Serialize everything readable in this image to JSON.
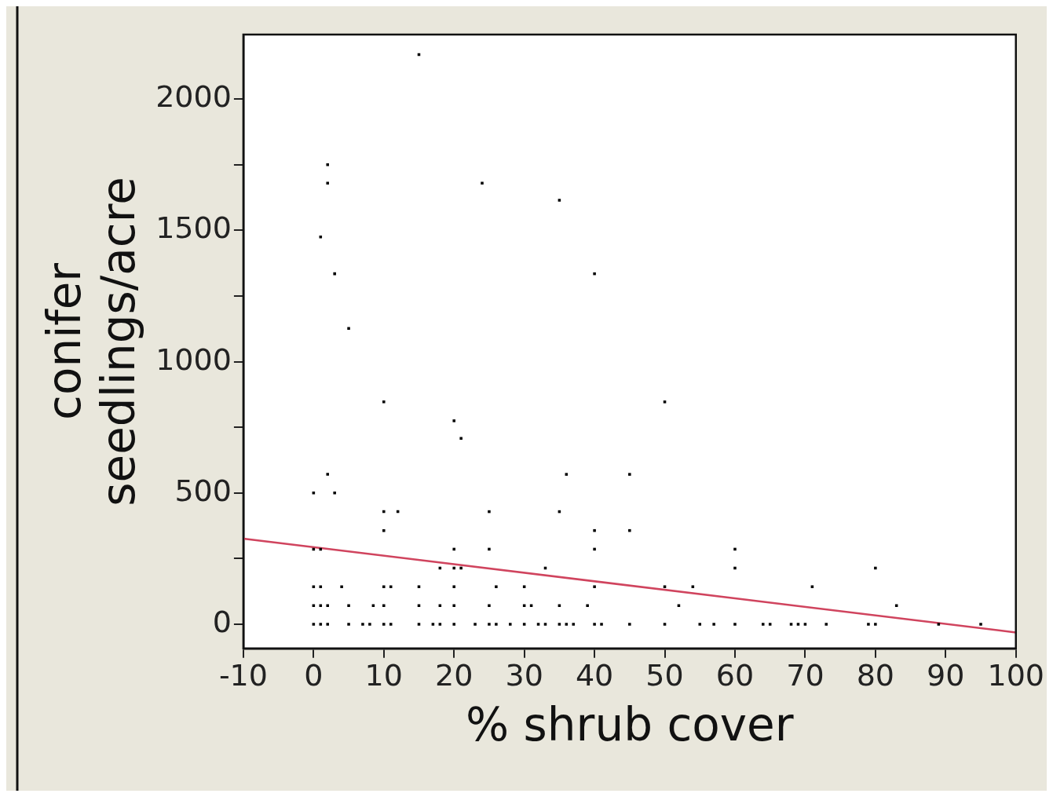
{
  "chart_data": {
    "type": "scatter",
    "xlabel": "% shrub cover",
    "ylabel": "conifer\nseedlings/acre",
    "xlim": [
      -10,
      100
    ],
    "xticks": [
      -10,
      0,
      10,
      20,
      30,
      40,
      50,
      60,
      70,
      80,
      90,
      100
    ],
    "ylim": [
      -92,
      2246
    ],
    "yticks": [
      0,
      {
        "value": 250,
        "label": null
      },
      500,
      {
        "value": 750,
        "label": null
      },
      1000,
      {
        "value": 1250,
        "label": null
      },
      1500,
      {
        "value": 1750,
        "label": null
      },
      2000
    ],
    "grid": false,
    "series": [
      {
        "type": "scatter",
        "marker": "square",
        "color": "#000000",
        "x": [
          15,
          2,
          2,
          24,
          35,
          1,
          3,
          40,
          5,
          10,
          50,
          20,
          21,
          2,
          36,
          45,
          0,
          3,
          10,
          12,
          25,
          35,
          10,
          40,
          45,
          0,
          1,
          20,
          25,
          40,
          60,
          18,
          20,
          21,
          33,
          60,
          80,
          0,
          1,
          4,
          10,
          11,
          15,
          20,
          26,
          30,
          40,
          50,
          54,
          71,
          0,
          1,
          2,
          5,
          8.5,
          10,
          15,
          18,
          20,
          25,
          30,
          31,
          35,
          39,
          52,
          83,
          0,
          1,
          2,
          5,
          7,
          8,
          10,
          11,
          15,
          17,
          18,
          20,
          23,
          25,
          26,
          28,
          30,
          32,
          33,
          35,
          36,
          37,
          40,
          41,
          45,
          50,
          55,
          57,
          60,
          64,
          65,
          68,
          69,
          70,
          73,
          79,
          80,
          89,
          95
        ],
        "values": [
          2170,
          1750,
          1680,
          1680,
          1615,
          1475,
          1335,
          1335,
          1127,
          847,
          847,
          775,
          708,
          571,
          571,
          571,
          500,
          500,
          429,
          429,
          429,
          429,
          357,
          357,
          357,
          286,
          286,
          286,
          286,
          286,
          286,
          214,
          214,
          214,
          214,
          214,
          214,
          143,
          143,
          143,
          143,
          143,
          143,
          143,
          143,
          143,
          143,
          143,
          143,
          143,
          71,
          71,
          71,
          71,
          71,
          71,
          71,
          71,
          71,
          71,
          71,
          71,
          71,
          71,
          71,
          71,
          0,
          0,
          0,
          0,
          0,
          0,
          0,
          0,
          0,
          0,
          0,
          0,
          0,
          0,
          0,
          0,
          0,
          0,
          0,
          0,
          0,
          0,
          0,
          0,
          0,
          0,
          0,
          0,
          0,
          0,
          0,
          0,
          0,
          0,
          0,
          0,
          0,
          0,
          0
        ]
      },
      {
        "type": "line",
        "marker": "none",
        "color": "#d0445e",
        "x": [
          -10,
          100
        ],
        "values": [
          326,
          -31
        ]
      }
    ]
  }
}
